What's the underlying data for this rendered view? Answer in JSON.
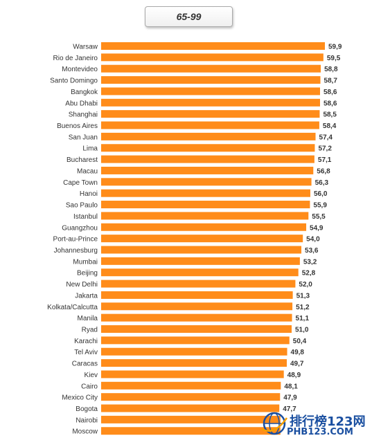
{
  "title": "65-99",
  "colors": {
    "bar": "#FF8C1A",
    "bar_shade": "#E87910",
    "text": "#333333",
    "watermark": "#1A4FA0"
  },
  "chart_data": {
    "type": "bar",
    "orientation": "horizontal",
    "title": "65-99",
    "categories": [
      "Warsaw",
      "Rio de Janeiro",
      "Montevideo",
      "Santo Domingo",
      "Bangkok",
      "Abu Dhabi",
      "Shanghai",
      "Buenos Aires",
      "San Juan",
      "Lima",
      "Bucharest",
      "Macau",
      "Cape Town",
      "Hanoi",
      "Sao Paulo",
      "Istanbul",
      "Guangzhou",
      "Port-au-Prince",
      "Johannesburg",
      "Mumbai",
      "Beijing",
      "New Delhi",
      "Jakarta",
      "Kolkata/Calcutta",
      "Manila",
      "Ryad",
      "Karachi",
      "Tel Aviv",
      "Caracas",
      "Kiev",
      "Cairo",
      "Mexico City",
      "Bogota",
      "Nairobi",
      "Moscow"
    ],
    "values": [
      59.9,
      59.5,
      58.8,
      58.7,
      58.6,
      58.6,
      58.5,
      58.4,
      57.4,
      57.2,
      57.1,
      56.8,
      56.3,
      56.0,
      55.9,
      55.5,
      54.9,
      54.0,
      53.6,
      53.2,
      52.8,
      52.0,
      51.3,
      51.2,
      51.1,
      51.0,
      50.4,
      49.8,
      49.7,
      48.9,
      48.1,
      47.9,
      47.7,
      null,
      null
    ],
    "value_labels": [
      "59,9",
      "59,5",
      "58,8",
      "58,7",
      "58,6",
      "58,6",
      "58,5",
      "58,4",
      "57,4",
      "57,2",
      "57,1",
      "56,8",
      "56,3",
      "56,0",
      "55,9",
      "55,5",
      "54,9",
      "54,0",
      "53,6",
      "53,2",
      "52,8",
      "52,0",
      "51,3",
      "51,2",
      "51,1",
      "51,0",
      "50,4",
      "49,8",
      "49,7",
      "48,9",
      "48,1",
      "47,9",
      "47,7",
      "",
      ""
    ],
    "xlim": [
      0,
      59.9
    ],
    "grid": false,
    "legend": "none"
  },
  "watermark": {
    "text": "排行榜123网",
    "url": "PHB123.COM"
  }
}
